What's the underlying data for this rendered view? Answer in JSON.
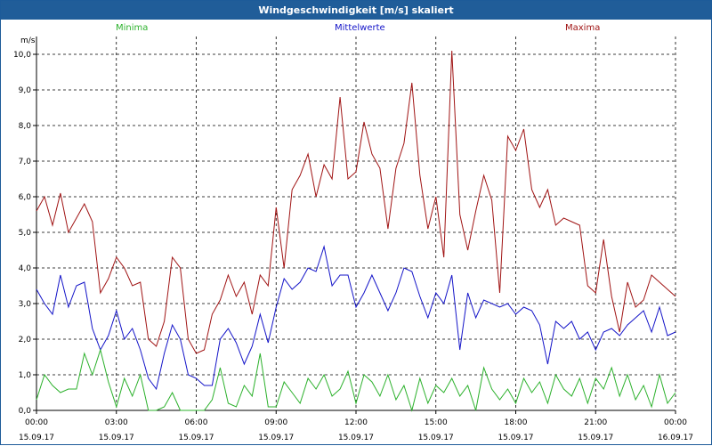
{
  "window": {
    "title": "Windgeschwindigkeit [m/s] skaliert"
  },
  "legend": {
    "min": {
      "label": "Minima",
      "color": "#2cb12c"
    },
    "mean": {
      "label": "Mittelwerte",
      "color": "#1414c8"
    },
    "max": {
      "label": "Maxima",
      "color": "#a01414"
    }
  },
  "chart_data": {
    "type": "line",
    "ylabel": "m/s",
    "ylim": [
      0,
      10.5
    ],
    "yticks": [
      "0,0",
      "1,0",
      "2,0",
      "3,0",
      "4,0",
      "5,0",
      "6,0",
      "7,0",
      "8,0",
      "9,0",
      "10,0"
    ],
    "xlim_hours": [
      0,
      24
    ],
    "x_tick_hours": [
      0,
      3,
      6,
      9,
      12,
      15,
      18,
      21,
      24
    ],
    "xticks": [
      {
        "time": "00:00",
        "date": "15.09.17"
      },
      {
        "time": "03:00",
        "date": "15.09.17"
      },
      {
        "time": "06:00",
        "date": "15.09.17"
      },
      {
        "time": "09:00",
        "date": "15.09.17"
      },
      {
        "time": "12:00",
        "date": "15.09.17"
      },
      {
        "time": "15:00",
        "date": "15.09.17"
      },
      {
        "time": "18:00",
        "date": "15.09.17"
      },
      {
        "time": "21:00",
        "date": "15.09.17"
      },
      {
        "time": "00:00",
        "date": "16.09.17"
      }
    ],
    "grid": true,
    "series": [
      {
        "name": "Maxima",
        "color": "#a01414",
        "x": [
          0,
          0.3,
          0.6,
          0.9,
          1.2,
          1.5,
          1.8,
          2.1,
          2.4,
          2.7,
          3.0,
          3.3,
          3.6,
          3.9,
          4.2,
          4.5,
          4.8,
          5.1,
          5.4,
          5.7,
          6.0,
          6.3,
          6.6,
          6.9,
          7.2,
          7.5,
          7.8,
          8.1,
          8.4,
          8.7,
          9.0,
          9.3,
          9.6,
          9.9,
          10.2,
          10.5,
          10.8,
          11.1,
          11.4,
          11.7,
          12.0,
          12.3,
          12.6,
          12.9,
          13.2,
          13.5,
          13.8,
          14.1,
          14.4,
          14.7,
          15.0,
          15.3,
          15.6,
          15.9,
          16.2,
          16.5,
          16.8,
          17.1,
          17.4,
          17.7,
          18.0,
          18.3,
          18.6,
          18.9,
          19.2,
          19.5,
          19.8,
          20.1,
          20.4,
          20.7,
          21.0,
          21.3,
          21.6,
          21.9,
          22.2,
          22.5,
          22.8,
          23.1,
          23.4,
          23.7,
          24.0
        ],
        "values": [
          5.6,
          6.0,
          5.2,
          6.1,
          5.0,
          5.4,
          5.8,
          5.3,
          3.3,
          3.7,
          4.3,
          4.0,
          3.5,
          3.6,
          2.0,
          1.8,
          2.5,
          4.3,
          4.0,
          2.0,
          1.6,
          1.7,
          2.7,
          3.1,
          3.8,
          3.2,
          3.6,
          2.7,
          3.8,
          3.5,
          5.7,
          4.0,
          6.2,
          6.6,
          7.2,
          6.0,
          6.9,
          6.5,
          8.8,
          6.5,
          6.7,
          8.1,
          7.2,
          6.8,
          5.1,
          6.8,
          7.5,
          9.2,
          6.6,
          5.1,
          6.0,
          4.3,
          10.1,
          5.5,
          4.5,
          5.6,
          6.6,
          5.9,
          3.3,
          7.7,
          7.3,
          7.9,
          6.2,
          5.7,
          6.2,
          5.2,
          5.4,
          5.3,
          5.2,
          3.5,
          3.3,
          4.8,
          3.2,
          2.2,
          3.6,
          2.9,
          3.1,
          3.8,
          3.6,
          3.4,
          3.2
        ]
      },
      {
        "name": "Mittelwerte",
        "color": "#1414c8",
        "x": [
          0,
          0.3,
          0.6,
          0.9,
          1.2,
          1.5,
          1.8,
          2.1,
          2.4,
          2.7,
          3.0,
          3.3,
          3.6,
          3.9,
          4.2,
          4.5,
          4.8,
          5.1,
          5.4,
          5.7,
          6.0,
          6.3,
          6.6,
          6.9,
          7.2,
          7.5,
          7.8,
          8.1,
          8.4,
          8.7,
          9.0,
          9.3,
          9.6,
          9.9,
          10.2,
          10.5,
          10.8,
          11.1,
          11.4,
          11.7,
          12.0,
          12.3,
          12.6,
          12.9,
          13.2,
          13.5,
          13.8,
          14.1,
          14.4,
          14.7,
          15.0,
          15.3,
          15.6,
          15.9,
          16.2,
          16.5,
          16.8,
          17.1,
          17.4,
          17.7,
          18.0,
          18.3,
          18.6,
          18.9,
          19.2,
          19.5,
          19.8,
          20.1,
          20.4,
          20.7,
          21.0,
          21.3,
          21.6,
          21.9,
          22.2,
          22.5,
          22.8,
          23.1,
          23.4,
          23.7,
          24.0
        ],
        "values": [
          3.4,
          3.0,
          2.7,
          3.8,
          2.9,
          3.5,
          3.6,
          2.3,
          1.7,
          2.1,
          2.8,
          2.0,
          2.3,
          1.7,
          0.9,
          0.6,
          1.6,
          2.4,
          2.0,
          1.0,
          0.9,
          0.7,
          0.7,
          2.0,
          2.3,
          1.9,
          1.3,
          1.8,
          2.7,
          1.9,
          2.9,
          3.7,
          3.4,
          3.6,
          4.0,
          3.9,
          4.6,
          3.5,
          3.8,
          3.8,
          2.9,
          3.3,
          3.8,
          3.3,
          2.8,
          3.3,
          4.0,
          3.9,
          3.2,
          2.6,
          3.3,
          3.0,
          3.8,
          1.7,
          3.3,
          2.6,
          3.1,
          3.0,
          2.9,
          3.0,
          2.7,
          2.9,
          2.8,
          2.4,
          1.3,
          2.5,
          2.3,
          2.5,
          2.0,
          2.2,
          1.7,
          2.2,
          2.3,
          2.1,
          2.4,
          2.6,
          2.8,
          2.2,
          2.9,
          2.1,
          2.2
        ]
      },
      {
        "name": "Minima",
        "color": "#2cb12c",
        "x": [
          0,
          0.3,
          0.6,
          0.9,
          1.2,
          1.5,
          1.8,
          2.1,
          2.4,
          2.7,
          3.0,
          3.3,
          3.6,
          3.9,
          4.2,
          4.5,
          4.8,
          5.1,
          5.4,
          5.7,
          6.0,
          6.3,
          6.6,
          6.9,
          7.2,
          7.5,
          7.8,
          8.1,
          8.4,
          8.7,
          9.0,
          9.3,
          9.6,
          9.9,
          10.2,
          10.5,
          10.8,
          11.1,
          11.4,
          11.7,
          12.0,
          12.3,
          12.6,
          12.9,
          13.2,
          13.5,
          13.8,
          14.1,
          14.4,
          14.7,
          15.0,
          15.3,
          15.6,
          15.9,
          16.2,
          16.5,
          16.8,
          17.1,
          17.4,
          17.7,
          18.0,
          18.3,
          18.6,
          18.9,
          19.2,
          19.5,
          19.8,
          20.1,
          20.4,
          20.7,
          21.0,
          21.3,
          21.6,
          21.9,
          22.2,
          22.5,
          22.8,
          23.1,
          23.4,
          23.7,
          24.0
        ],
        "values": [
          0.3,
          1.0,
          0.7,
          0.5,
          0.6,
          0.6,
          1.6,
          1.0,
          1.7,
          0.8,
          0.1,
          0.9,
          0.4,
          1.0,
          0.0,
          0.0,
          0.1,
          0.5,
          0.0,
          0.0,
          0.0,
          0.0,
          0.3,
          1.2,
          0.2,
          0.1,
          0.7,
          0.4,
          1.6,
          0.1,
          0.1,
          0.8,
          0.5,
          0.2,
          0.9,
          0.6,
          1.0,
          0.4,
          0.6,
          1.1,
          0.2,
          1.0,
          0.8,
          0.4,
          1.0,
          0.3,
          0.7,
          0.0,
          0.9,
          0.2,
          0.7,
          0.5,
          0.9,
          0.4,
          0.7,
          0.0,
          1.2,
          0.6,
          0.3,
          0.6,
          0.2,
          0.9,
          0.5,
          0.8,
          0.2,
          1.0,
          0.6,
          0.4,
          0.9,
          0.2,
          0.9,
          0.6,
          1.2,
          0.4,
          1.0,
          0.3,
          0.7,
          0.1,
          1.0,
          0.2,
          0.5
        ]
      }
    ]
  }
}
